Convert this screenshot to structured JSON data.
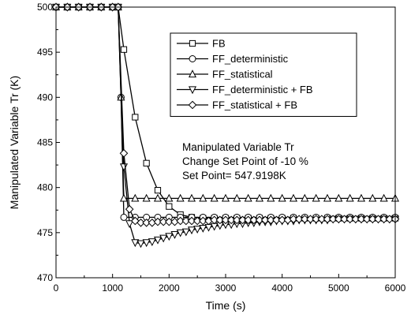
{
  "chart_data": {
    "type": "line",
    "title": "",
    "xlabel": "Time (s)",
    "ylabel": "Manipulated Variable Tr (K)",
    "xlim": [
      0,
      6000
    ],
    "ylim": [
      470,
      500
    ],
    "x_ticks": [
      0,
      1000,
      2000,
      3000,
      4000,
      5000,
      6000
    ],
    "y_ticks": [
      470,
      475,
      480,
      485,
      490,
      495,
      500
    ],
    "grid": false,
    "legend_position": "top-right",
    "annotations": [
      "Manipulated Variable Tr",
      "Change Set Point of -10 %",
      "Set Point= 547.9198K"
    ],
    "series": [
      {
        "name": "FB",
        "marker": "square",
        "x": [
          0,
          200,
          400,
          600,
          800,
          1000,
          1100,
          1200,
          1400,
          1600,
          1800,
          2000,
          2200,
          2400,
          2600,
          2800,
          3000,
          3200,
          3400,
          3600,
          3800,
          4000,
          4200,
          4400,
          4600,
          4800,
          5000,
          5200,
          5400,
          5600,
          5800,
          6000
        ],
        "y": [
          500,
          500,
          500,
          500,
          500,
          500,
          500,
          495.3,
          487.8,
          482.7,
          479.7,
          477.9,
          477.0,
          476.7,
          476.6,
          476.6,
          476.6,
          476.6,
          476.6,
          476.6,
          476.6,
          476.6,
          476.6,
          476.6,
          476.6,
          476.6,
          476.6,
          476.6,
          476.6,
          476.6,
          476.6,
          476.6
        ]
      },
      {
        "name": "FF_deterministic",
        "marker": "circle",
        "x": [
          0,
          200,
          400,
          600,
          800,
          1000,
          1100,
          1150,
          1200,
          1400,
          1600,
          1800,
          2000,
          2200,
          2400,
          2600,
          2800,
          3000,
          3200,
          3400,
          3600,
          3800,
          4000,
          4200,
          4400,
          4600,
          4800,
          5000,
          5200,
          5400,
          5600,
          5800,
          6000
        ],
        "y": [
          500,
          500,
          500,
          500,
          500,
          500,
          500,
          490,
          476.7,
          476.7,
          476.7,
          476.7,
          476.7,
          476.7,
          476.7,
          476.7,
          476.7,
          476.7,
          476.7,
          476.7,
          476.7,
          476.7,
          476.7,
          476.7,
          476.7,
          476.7,
          476.7,
          476.7,
          476.7,
          476.7,
          476.7,
          476.7,
          476.7
        ]
      },
      {
        "name": "FF_statistical",
        "marker": "triangle-up",
        "x": [
          0,
          200,
          400,
          600,
          800,
          1000,
          1100,
          1150,
          1200,
          1400,
          1600,
          1800,
          2000,
          2200,
          2400,
          2600,
          2800,
          3000,
          3200,
          3400,
          3600,
          3800,
          4000,
          4200,
          4400,
          4600,
          4800,
          5000,
          5200,
          5400,
          5600,
          5800,
          6000
        ],
        "y": [
          500,
          500,
          500,
          500,
          500,
          500,
          500,
          490,
          478.8,
          478.8,
          478.8,
          478.8,
          478.8,
          478.8,
          478.8,
          478.8,
          478.8,
          478.8,
          478.8,
          478.8,
          478.8,
          478.8,
          478.8,
          478.8,
          478.8,
          478.8,
          478.8,
          478.8,
          478.8,
          478.8,
          478.8,
          478.8,
          478.8
        ]
      },
      {
        "name": "FF_deterministic + FB",
        "marker": "triangle-down",
        "x": [
          0,
          200,
          400,
          600,
          800,
          1000,
          1100,
          1200,
          1300,
          1400,
          1500,
          1600,
          1700,
          1800,
          1900,
          2000,
          2100,
          2200,
          2300,
          2400,
          2500,
          2600,
          2700,
          2800,
          2900,
          3000,
          3100,
          3200,
          3300,
          3400,
          3500,
          3600,
          3700,
          3800,
          3900,
          4000,
          4100,
          4200,
          4300,
          4400,
          4500,
          4600,
          4700,
          4800,
          4900,
          5000,
          5100,
          5200,
          5300,
          5400,
          5500,
          5600,
          5700,
          5800,
          5900,
          6000
        ],
        "y": [
          500,
          500,
          500,
          500,
          500,
          500,
          500,
          482.3,
          476.0,
          473.9,
          473.8,
          473.9,
          474.0,
          474.2,
          474.4,
          474.6,
          474.8,
          475.0,
          475.1,
          475.3,
          475.4,
          475.5,
          475.6,
          475.7,
          475.8,
          475.9,
          475.9,
          476.0,
          476.0,
          476.1,
          476.1,
          476.2,
          476.2,
          476.2,
          476.3,
          476.3,
          476.3,
          476.3,
          476.4,
          476.4,
          476.4,
          476.4,
          476.4,
          476.4,
          476.5,
          476.5,
          476.5,
          476.5,
          476.5,
          476.5,
          476.5,
          476.5,
          476.5,
          476.5,
          476.5,
          476.5
        ]
      },
      {
        "name": "FF_statistical + FB",
        "marker": "diamond",
        "x": [
          0,
          200,
          400,
          600,
          800,
          1000,
          1100,
          1200,
          1300,
          1400,
          1500,
          1600,
          1700,
          1800,
          1900,
          2000,
          2100,
          2200,
          2300,
          2400,
          2500,
          2600,
          2700,
          2800,
          2900,
          3000,
          3100,
          3200,
          3300,
          3400,
          3500,
          3600,
          3700,
          3800,
          3900,
          4000,
          4100,
          4200,
          4300,
          4400,
          4500,
          4600,
          4700,
          4800,
          4900,
          5000,
          5100,
          5200,
          5300,
          5400,
          5500,
          5600,
          5700,
          5800,
          5900,
          6000
        ],
        "y": [
          500,
          500,
          500,
          500,
          500,
          500,
          500,
          483.8,
          477.6,
          476.3,
          476.1,
          476.1,
          476.1,
          476.2,
          476.2,
          476.2,
          476.2,
          476.3,
          476.3,
          476.3,
          476.3,
          476.3,
          476.3,
          476.4,
          476.4,
          476.4,
          476.4,
          476.4,
          476.4,
          476.4,
          476.4,
          476.4,
          476.4,
          476.4,
          476.4,
          476.4,
          476.4,
          476.5,
          476.5,
          476.5,
          476.5,
          476.5,
          476.5,
          476.5,
          476.5,
          476.5,
          476.5,
          476.5,
          476.5,
          476.5,
          476.5,
          476.5,
          476.5,
          476.5,
          476.5,
          476.5
        ]
      }
    ]
  }
}
